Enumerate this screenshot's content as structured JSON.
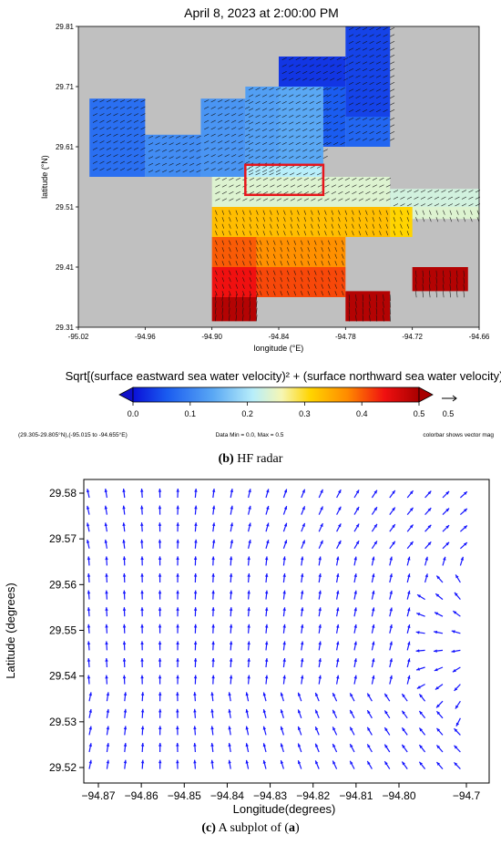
{
  "top": {
    "title": "April 8, 2023 at 2:00:00 PM",
    "xlabel": "longitude (°E)",
    "ylabel": "latitude (°N)",
    "xticks": [
      "-95.02",
      "-94.96",
      "-94.90",
      "-94.84",
      "-94.78",
      "-94.72",
      "-94.66"
    ],
    "yticks": [
      "29.81",
      "29.71",
      "29.61",
      "29.51",
      "29.41",
      "29.31"
    ],
    "colorbar_title": "Sqrt[(surface eastward sea water velocity)² + (surface northward sea water velocity)²]",
    "colorbar_ticks": [
      "0.0",
      "0.1",
      "0.2",
      "0.3",
      "0.4",
      "0.5"
    ],
    "vector_legend_value": "0.5",
    "footer_left": "(29.305-29.805°N),(-95.015 to -94.655°E)",
    "footer_mid": "Data Min = 0.0, Max = 0.5",
    "footer_right": "colorbar shows vector mag",
    "land_color": "#c0c0c0",
    "highlight_box_color": "#e8141b"
  },
  "caption_b": {
    "label": "(b)",
    "text": " HF radar"
  },
  "caption_c": {
    "label": "(c)",
    "text": " A subplot of (",
    "ref": "a",
    "end": ")"
  },
  "chart_data": [
    {
      "type": "heatmap",
      "title": "April 8, 2023 at 2:00:00 PM",
      "xlabel": "longitude (°E)",
      "ylabel": "latitude (°N)",
      "xlim": [
        -95.02,
        -94.66
      ],
      "ylim": [
        29.31,
        29.81
      ],
      "colorbar": {
        "min": 0.0,
        "max": 0.5
      },
      "highlight_box": {
        "lon": [
          -94.87,
          -94.8
        ],
        "lat": [
          29.53,
          29.58
        ]
      },
      "cells": [
        {
          "lon": [
            -95.01,
            -94.96
          ],
          "lat": [
            29.56,
            29.69
          ],
          "value": 0.08
        },
        {
          "lon": [
            -94.96,
            -94.91
          ],
          "lat": [
            29.56,
            29.63
          ],
          "value": 0.11
        },
        {
          "lon": [
            -94.91,
            -94.87
          ],
          "lat": [
            29.56,
            29.69
          ],
          "value": 0.12
        },
        {
          "lon": [
            -94.87,
            -94.84
          ],
          "lat": [
            29.56,
            29.71
          ],
          "value": 0.13
        },
        {
          "lon": [
            -94.84,
            -94.8
          ],
          "lat": [
            29.58,
            29.71
          ],
          "value": 0.14
        },
        {
          "lon": [
            -94.87,
            -94.8
          ],
          "lat": [
            29.56,
            29.58
          ],
          "value": 0.21
        },
        {
          "lon": [
            -94.84,
            -94.78
          ],
          "lat": [
            29.71,
            29.76
          ],
          "value": 0.03
        },
        {
          "lon": [
            -94.8,
            -94.78
          ],
          "lat": [
            29.61,
            29.71
          ],
          "value": 0.06
        },
        {
          "lon": [
            -94.78,
            -94.74
          ],
          "lat": [
            29.66,
            29.81
          ],
          "value": 0.04
        },
        {
          "lon": [
            -94.78,
            -94.74
          ],
          "lat": [
            29.61,
            29.66
          ],
          "value": 0.07
        },
        {
          "lon": [
            -94.9,
            -94.74
          ],
          "lat": [
            29.51,
            29.56
          ],
          "value": 0.24
        },
        {
          "lon": [
            -94.74,
            -94.66
          ],
          "lat": [
            29.51,
            29.54
          ],
          "value": 0.23
        },
        {
          "lon": [
            -94.72,
            -94.66
          ],
          "lat": [
            29.49,
            29.51
          ],
          "value": 0.24
        },
        {
          "lon": [
            -94.9,
            -94.74
          ],
          "lat": [
            29.46,
            29.51
          ],
          "value": 0.33
        },
        {
          "lon": [
            -94.74,
            -94.72
          ],
          "lat": [
            29.46,
            29.51
          ],
          "value": 0.31
        },
        {
          "lon": [
            -94.9,
            -94.86
          ],
          "lat": [
            29.41,
            29.46
          ],
          "value": 0.4
        },
        {
          "lon": [
            -94.86,
            -94.78
          ],
          "lat": [
            29.41,
            29.46
          ],
          "value": 0.37
        },
        {
          "lon": [
            -94.9,
            -94.86
          ],
          "lat": [
            29.36,
            29.41
          ],
          "value": 0.44
        },
        {
          "lon": [
            -94.86,
            -94.78
          ],
          "lat": [
            29.36,
            29.41
          ],
          "value": 0.41
        },
        {
          "lon": [
            -94.9,
            -94.86
          ],
          "lat": [
            29.32,
            29.36
          ],
          "value": 0.49
        },
        {
          "lon": [
            -94.78,
            -94.74
          ],
          "lat": [
            29.32,
            29.37
          ],
          "value": 0.49
        },
        {
          "lon": [
            -94.72,
            -94.67
          ],
          "lat": [
            29.37,
            29.41
          ],
          "value": 0.49
        }
      ]
    },
    {
      "type": "scatter",
      "xlabel": "Longitude(degrees)",
      "ylabel": "Latitude (degrees)",
      "xlim": [
        -94.87,
        -94.7
      ],
      "ylim": [
        29.52,
        29.58
      ],
      "xticks": [
        "−94.87",
        "−94.86",
        "−94.85",
        "−94.84",
        "−94.83",
        "−94.82",
        "−94.81",
        "−94.80",
        "−94.7"
      ],
      "yticks": [
        "29.58",
        "29.57",
        "29.56",
        "29.55",
        "29.54",
        "29.53",
        "29.52"
      ],
      "series_color": "#1515ff",
      "grid": false,
      "vortex_center": {
        "lon": -94.777,
        "lat": 29.547
      }
    }
  ]
}
